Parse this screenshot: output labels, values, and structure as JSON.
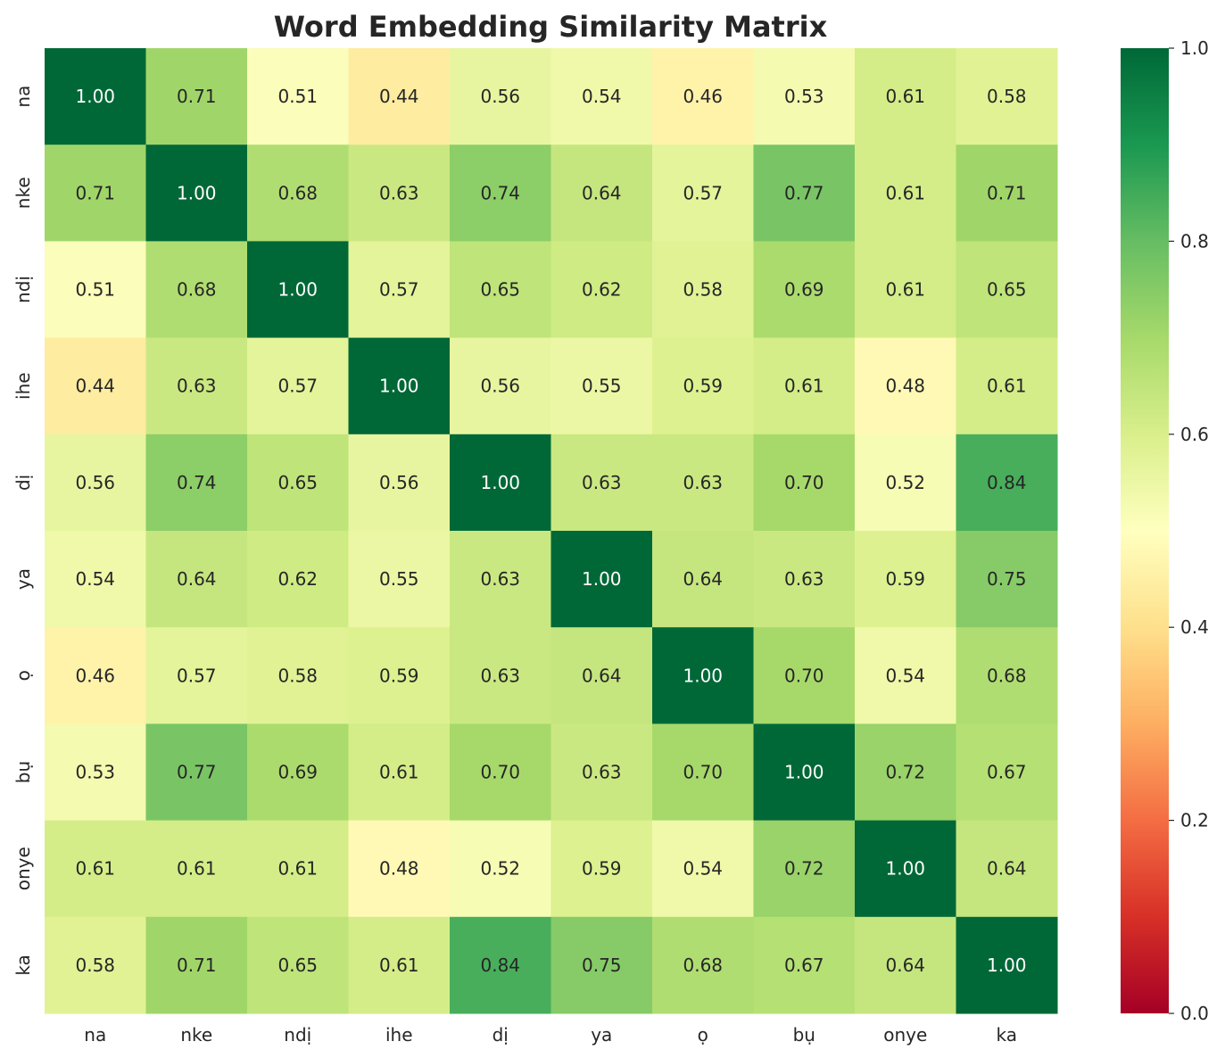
{
  "chart_data": {
    "type": "heatmap",
    "title": "Word Embedding Similarity Matrix",
    "labels": [
      "na",
      "nke",
      "ndị",
      "ihe",
      "dị",
      "ya",
      "ọ",
      "bụ",
      "onye",
      "ka"
    ],
    "values": [
      [
        1.0,
        0.71,
        0.51,
        0.44,
        0.56,
        0.54,
        0.46,
        0.53,
        0.61,
        0.58
      ],
      [
        0.71,
        1.0,
        0.68,
        0.63,
        0.74,
        0.64,
        0.57,
        0.77,
        0.61,
        0.71
      ],
      [
        0.51,
        0.68,
        1.0,
        0.57,
        0.65,
        0.62,
        0.58,
        0.69,
        0.61,
        0.65
      ],
      [
        0.44,
        0.63,
        0.57,
        1.0,
        0.56,
        0.55,
        0.59,
        0.61,
        0.48,
        0.61
      ],
      [
        0.56,
        0.74,
        0.65,
        0.56,
        1.0,
        0.63,
        0.63,
        0.7,
        0.52,
        0.84
      ],
      [
        0.54,
        0.64,
        0.62,
        0.55,
        0.63,
        1.0,
        0.64,
        0.63,
        0.59,
        0.75
      ],
      [
        0.46,
        0.57,
        0.58,
        0.59,
        0.63,
        0.64,
        1.0,
        0.7,
        0.54,
        0.68
      ],
      [
        0.53,
        0.77,
        0.69,
        0.61,
        0.7,
        0.63,
        0.7,
        1.0,
        0.72,
        0.67
      ],
      [
        0.61,
        0.61,
        0.61,
        0.48,
        0.52,
        0.59,
        0.54,
        0.72,
        1.0,
        0.64
      ],
      [
        0.58,
        0.71,
        0.65,
        0.61,
        0.84,
        0.75,
        0.68,
        0.67,
        0.64,
        1.0
      ]
    ],
    "value_range": [
      0.0,
      1.0
    ],
    "colormap": "RdYlGn",
    "colorbar_ticks": [
      "0.0",
      "0.2",
      "0.4",
      "0.6",
      "0.8",
      "1.0"
    ],
    "grid": false,
    "colorbar_position": "right"
  }
}
